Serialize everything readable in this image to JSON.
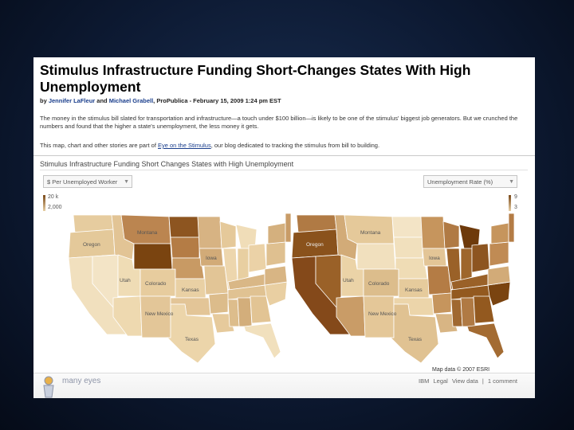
{
  "article": {
    "title": "Stimulus Infrastructure Funding Short-Changes States With High Unemployment",
    "byline_prefix": "by ",
    "author1": "Jennifer LaFleur",
    "byline_and": " and ",
    "author2": "Michael Grabell",
    "byline_suffix": ", ProPublica - February 15, 2009 1:24 pm EST",
    "para1": "The money in the stimulus bill slated for transportation and infrastructure—a touch under $100 billion—is likely to be one of the stimulus' biggest job generators. But we crunched the numbers and found that the higher a state's unemployment, the less money it gets.",
    "para2_before": "This map, chart and other stories are part of ",
    "para2_link": "Eye on the Stimulus",
    "para2_after": ", our blog dedicated to tracking the stimulus from bill to building."
  },
  "viz": {
    "title": "Stimulus Infrastructure Funding Short Changes States with High Unemployment",
    "left_select": "$ Per Unemployed Worker",
    "right_select": "Unemployment Rate (%)",
    "left_legend": {
      "max": "20 k",
      "min": "2,000"
    },
    "right_legend": {
      "max": "9",
      "min": "3"
    },
    "state_labels": [
      "Oregon",
      "Montana",
      "Utah",
      "Colorado",
      "Kansas",
      "New Mexico",
      "Iowa",
      "Texas"
    ],
    "credit": "Map data © 2007 ESRI",
    "footer": {
      "logo_text": "many eyes",
      "links": [
        "IBM",
        "Legal",
        "View data",
        "1 comment"
      ],
      "separator": "|"
    }
  },
  "colors": {
    "dark": "#7a4410",
    "mid_dark": "#a86d33",
    "mid": "#c6955d",
    "light": "#e0c091",
    "pale": "#f0deb9",
    "footer_text": "#8e95a8"
  }
}
